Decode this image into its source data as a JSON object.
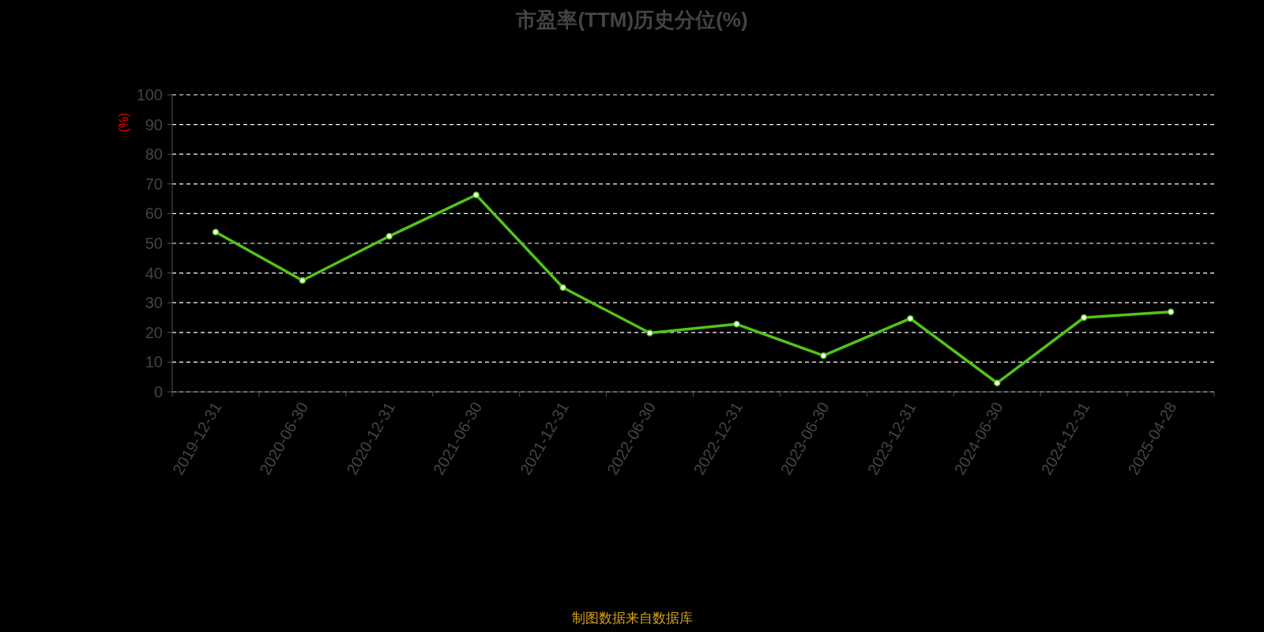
{
  "chart_data": {
    "type": "line",
    "title": "市盈率(TTM)历史分位(%)",
    "ylabel": "(%)",
    "categories": [
      "2019-12-31",
      "2020-06-30",
      "2020-12-31",
      "2021-06-30",
      "2021-12-31",
      "2022-06-30",
      "2022-12-31",
      "2023-06-30",
      "2023-12-31",
      "2024-06-30",
      "2024-12-31",
      "2025-04-28"
    ],
    "values": [
      53.8,
      37.5,
      52.4,
      66.3,
      35.1,
      19.8,
      22.8,
      12.2,
      24.7,
      3.0,
      25.0,
      26.9
    ],
    "color": "#52c41a",
    "ylim": [
      0,
      100
    ],
    "yticks": [
      0,
      10,
      20,
      30,
      40,
      50,
      60,
      70,
      80,
      90,
      100
    ],
    "grid": "y",
    "marker": "circle",
    "line_style": "solid",
    "annotations": [
      "制图数据来自数据库"
    ]
  }
}
